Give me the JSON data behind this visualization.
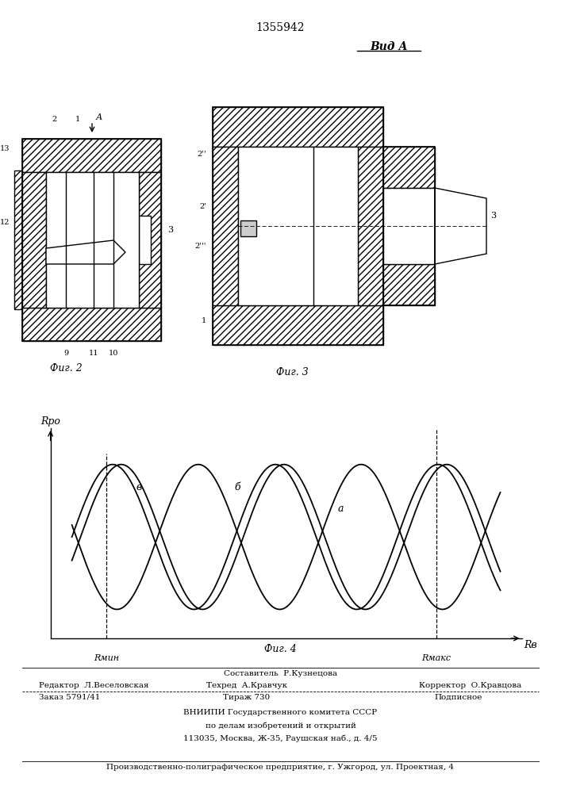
{
  "patent_number": "1355942",
  "bg_color": "#ffffff",
  "line_color": "#000000",
  "fig2_caption": "Фиг. 2",
  "fig3_caption": "Фиг. 3",
  "fig4_caption": "Фиг. 4",
  "vida_label": "Вид А",
  "y_axis_label": "Rро",
  "x_axis_label": "Rв",
  "r_min_label": "Rмин",
  "r_max_label": "Rмакс",
  "curve_a_label": "а",
  "curve_b_label": "б",
  "curve_v_label": "в",
  "footer_line1_center": "Составитель  Р.Кузнецова",
  "footer_line2_left": "Редактор  Л.Веселовская",
  "footer_line2_center": "Техред  А.Кравчук",
  "footer_line2_right": "Корректор  О.Кравцова",
  "footer_line3_left": "Заказ 5791/41",
  "footer_line3_center": "Тираж 730",
  "footer_line3_right": "Подписное",
  "footer_line4": "ВНИИПИ Государственного комитета СССР",
  "footer_line5": "по делам изобретений и открытий",
  "footer_line6": "113035, Москва, Ж-35, Раушская наб., д. 4/5",
  "footer_line7": "Производственно-полиграфическое предприятие, г. Ужгород, ул. Проектная, 4"
}
